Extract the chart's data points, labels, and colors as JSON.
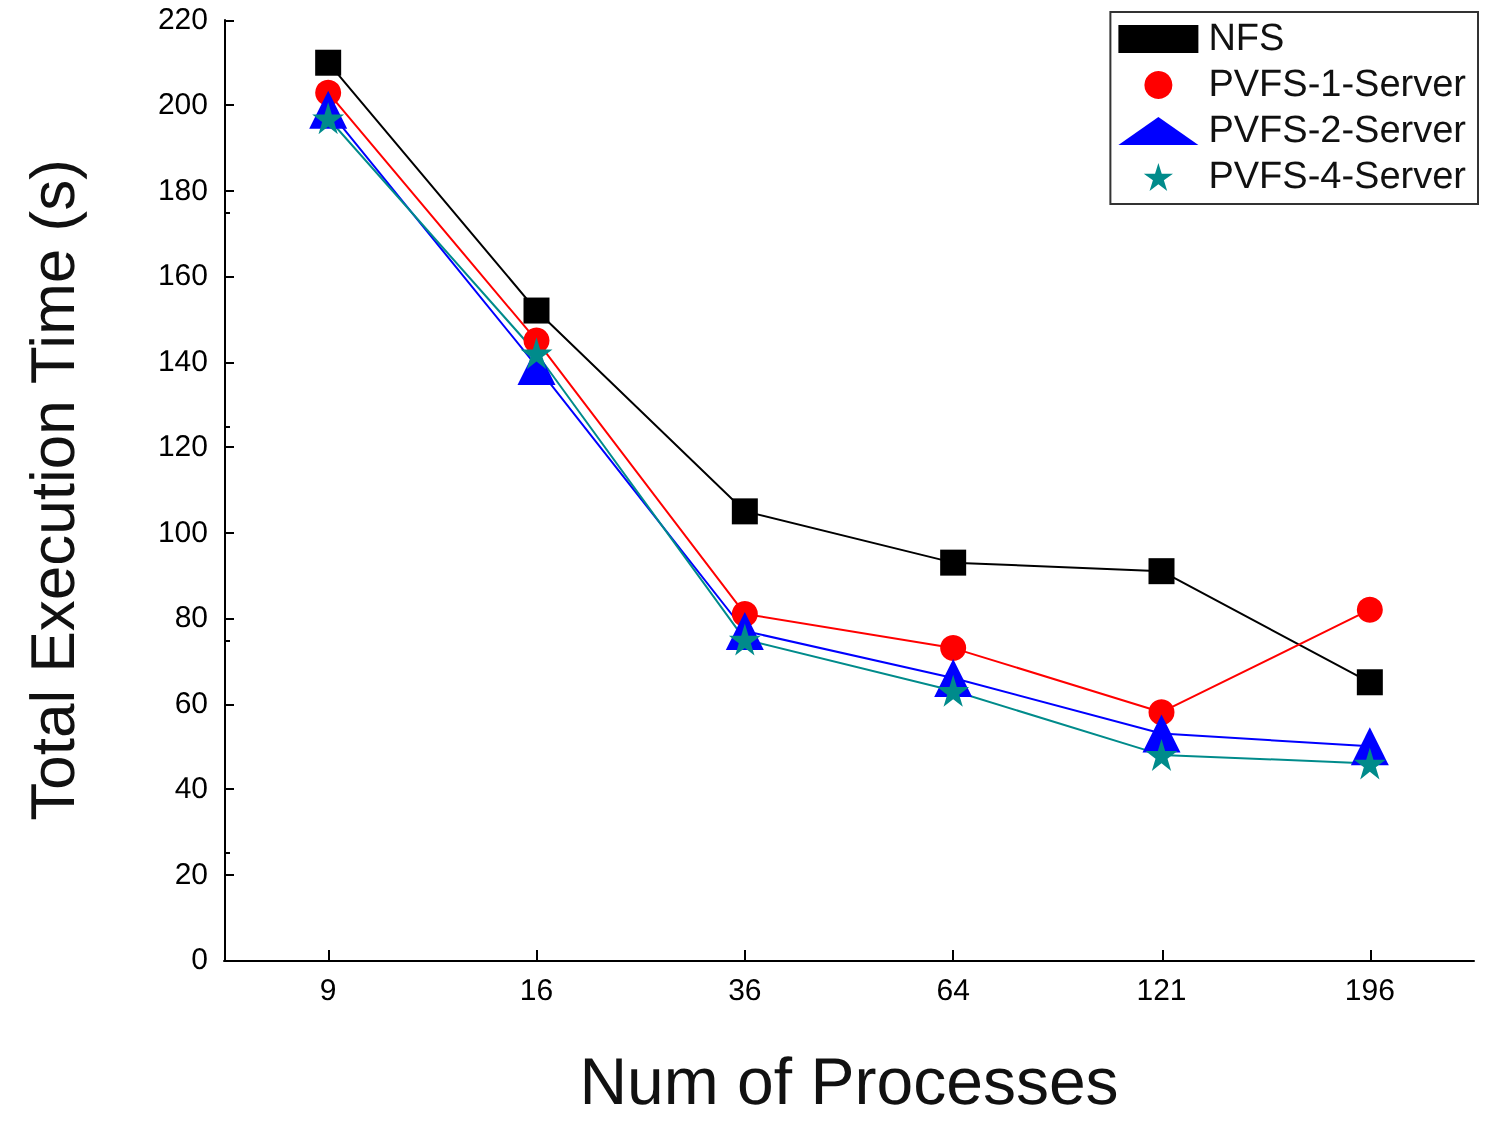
{
  "chart_data": {
    "type": "line",
    "xlabel": "Num of Processes",
    "ylabel": "Total Execution Time (s)",
    "categories": [
      "9",
      "16",
      "36",
      "64",
      "121",
      "196"
    ],
    "series": [
      {
        "name": "NFS",
        "color": "#000000",
        "marker": "square",
        "values": [
          210,
          152,
          105,
          93,
          91,
          65
        ]
      },
      {
        "name": "PVFS-1-Server",
        "color": "#ff0000",
        "marker": "circle",
        "values": [
          203,
          145,
          81,
          73,
          58,
          82
        ]
      },
      {
        "name": "PVFS-2-Server",
        "color": "#0000ff",
        "marker": "triangle",
        "values": [
          199,
          139,
          77,
          66,
          53,
          50
        ]
      },
      {
        "name": "PVFS-4-Server",
        "color": "#008b8b",
        "marker": "star",
        "values": [
          197,
          142,
          75,
          63,
          48,
          46
        ]
      }
    ],
    "ylim": [
      0,
      220
    ],
    "yticks": [
      0,
      20,
      40,
      60,
      80,
      100,
      120,
      140,
      160,
      180,
      200,
      220
    ],
    "legend": "top right",
    "grid": false
  }
}
